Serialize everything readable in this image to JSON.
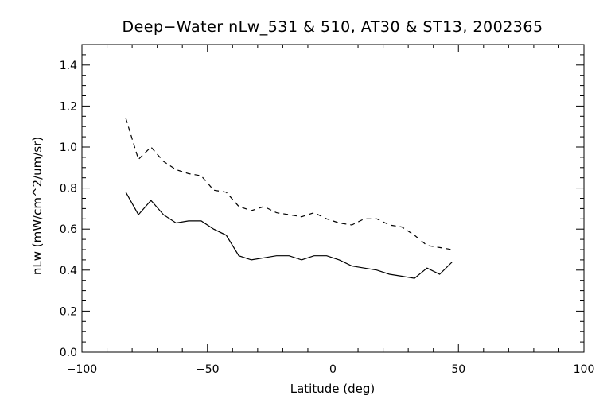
{
  "chart_data": {
    "type": "line",
    "title": "Deep−Water nLw_531 & 510, AT30 & ST13, 2002365",
    "xlabel": "Latitude (deg)",
    "ylabel": "nLw (mW/cm^2/um/sr)",
    "xlim": [
      -100,
      100
    ],
    "ylim": [
      0.0,
      1.5
    ],
    "x_ticks": [
      -100,
      -50,
      0,
      50,
      100
    ],
    "x_tick_labels": [
      "−100",
      "−50",
      "0",
      "50",
      "100"
    ],
    "y_ticks": [
      0.0,
      0.2,
      0.4,
      0.6,
      0.8,
      1.0,
      1.2,
      1.4
    ],
    "y_tick_labels": [
      "0.0",
      "0.2",
      "0.4",
      "0.6",
      "0.8",
      "1.0",
      "1.2",
      "1.4"
    ],
    "grid": false,
    "legend": "none",
    "x": [
      -82.5,
      -77.5,
      -72.5,
      -67.5,
      -62.5,
      -57.5,
      -52.5,
      -47.5,
      -42.5,
      -37.5,
      -32.5,
      -27.5,
      -22.5,
      -17.5,
      -12.5,
      -7.5,
      -2.5,
      2.5,
      7.5,
      12.5,
      17.5,
      22.5,
      27.5,
      32.5,
      37.5,
      42.5,
      47.5
    ],
    "series": [
      {
        "style": "dashed",
        "color": "#000000",
        "values": [
          1.14,
          0.94,
          1.0,
          0.93,
          0.89,
          0.87,
          0.86,
          0.79,
          0.78,
          0.71,
          0.69,
          0.71,
          0.68,
          0.67,
          0.66,
          0.68,
          0.65,
          0.63,
          0.62,
          0.65,
          0.65,
          0.62,
          0.61,
          0.57,
          0.52,
          0.51,
          0.5
        ]
      },
      {
        "style": "solid",
        "color": "#000000",
        "values": [
          0.78,
          0.67,
          0.74,
          0.67,
          0.63,
          0.64,
          0.64,
          0.6,
          0.57,
          0.47,
          0.45,
          0.46,
          0.47,
          0.47,
          0.45,
          0.47,
          0.47,
          0.45,
          0.42,
          0.41,
          0.4,
          0.38,
          0.37,
          0.36,
          0.41,
          0.38,
          0.44
        ]
      }
    ]
  }
}
